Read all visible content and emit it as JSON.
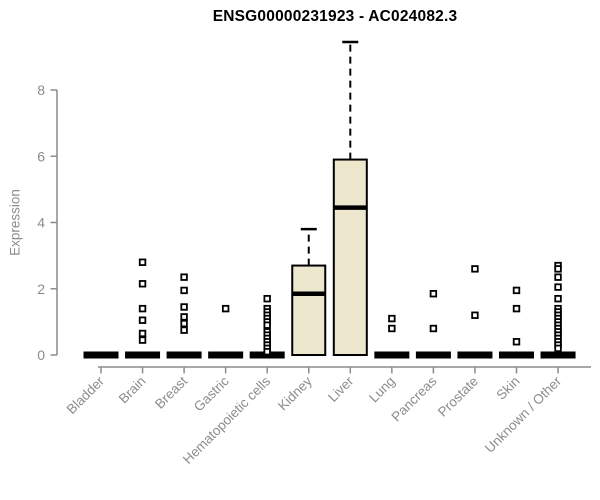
{
  "title": "ENSG00000231923 - AC024082.3",
  "chart_data": {
    "type": "boxplot",
    "title": "ENSG00000231923 - AC024082.3",
    "xlabel": "",
    "ylabel": "Expression",
    "ylim": [
      0,
      9.6
    ],
    "yticks": [
      0,
      2,
      4,
      6,
      8
    ],
    "grid": false,
    "legend": "none",
    "colors": {
      "box_fill": "#EDE8CD",
      "box_stroke": "#000000",
      "axis": "#8C8C8C",
      "title_color": "#000000",
      "background": "#FFFFFF"
    },
    "categories": [
      "Bladder",
      "Brain",
      "Breast",
      "Gastric",
      "Hematopoietic cells",
      "Kidney",
      "Liver",
      "Lung",
      "Pancreas",
      "Prostate",
      "Skin",
      "Unknown / Other"
    ],
    "boxes": [
      {
        "category": "Bladder",
        "q1": 0,
        "median": 0,
        "q3": 0,
        "whisker_low": 0,
        "whisker_high": 0,
        "outliers": []
      },
      {
        "category": "Brain",
        "q1": 0,
        "median": 0,
        "q3": 0,
        "whisker_low": 0,
        "whisker_high": 0,
        "outliers": [
          2.8,
          2.15,
          1.4,
          1.05,
          0.65,
          0.45
        ]
      },
      {
        "category": "Breast",
        "q1": 0,
        "median": 0,
        "q3": 0,
        "whisker_low": 0,
        "whisker_high": 0,
        "outliers": [
          2.35,
          1.95,
          1.45,
          1.15,
          0.95,
          0.75
        ]
      },
      {
        "category": "Gastric",
        "q1": 0,
        "median": 0,
        "q3": 0,
        "whisker_low": 0,
        "whisker_high": 0,
        "outliers": [
          1.4
        ]
      },
      {
        "category": "Hematopoietic cells",
        "q1": 0,
        "median": 0,
        "q3": 0,
        "whisker_low": 0,
        "whisker_high": 0,
        "outliers": [
          1.7,
          1.4,
          1.3,
          1.2,
          1.1,
          1.0,
          0.9,
          0.7,
          0.6,
          0.5,
          0.4,
          0.3,
          0.2,
          0.1
        ]
      },
      {
        "category": "Kidney",
        "q1": 0,
        "median": 1.85,
        "q3": 2.7,
        "whisker_low": 0,
        "whisker_high": 3.8,
        "outliers": []
      },
      {
        "category": "Liver",
        "q1": 0,
        "median": 4.45,
        "q3": 5.9,
        "whisker_low": 0,
        "whisker_high": 9.45,
        "outliers": []
      },
      {
        "category": "Lung",
        "q1": 0,
        "median": 0,
        "q3": 0,
        "whisker_low": 0,
        "whisker_high": 0,
        "outliers": [
          1.1,
          0.8
        ]
      },
      {
        "category": "Pancreas",
        "q1": 0,
        "median": 0,
        "q3": 0,
        "whisker_low": 0,
        "whisker_high": 0,
        "outliers": [
          1.85,
          0.8
        ]
      },
      {
        "category": "Prostate",
        "q1": 0,
        "median": 0,
        "q3": 0,
        "whisker_low": 0,
        "whisker_high": 0,
        "outliers": [
          2.6,
          1.2
        ]
      },
      {
        "category": "Skin",
        "q1": 0,
        "median": 0,
        "q3": 0,
        "whisker_low": 0,
        "whisker_high": 0,
        "outliers": [
          1.95,
          1.4,
          0.4
        ]
      },
      {
        "category": "Unknown / Other",
        "q1": 0,
        "median": 0,
        "q3": 0,
        "whisker_low": 0,
        "whisker_high": 0,
        "outliers": [
          2.7,
          2.6,
          2.35,
          2.05,
          1.7,
          1.4,
          1.3,
          1.2,
          1.1,
          1.0,
          0.9,
          0.8,
          0.7,
          0.6,
          0.5,
          0.4,
          0.3,
          0.2
        ]
      }
    ]
  }
}
